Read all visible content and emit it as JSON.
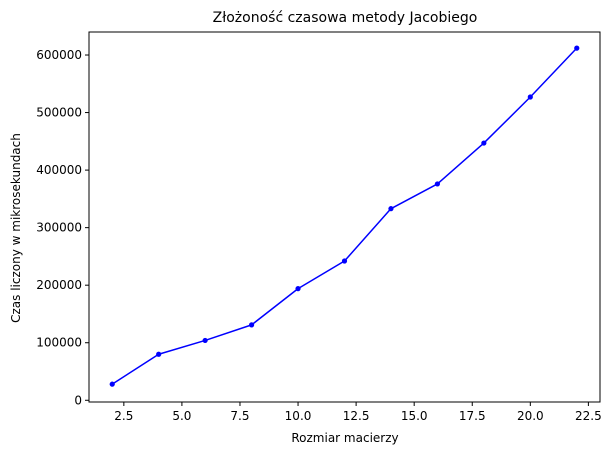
{
  "chart_data": {
    "type": "line",
    "title": "Złożoność czasowa metody Jacobiego",
    "xlabel": "Rozmiar macierzy",
    "ylabel": "Czas liczony w mikrosekundach",
    "xlim": [
      1.0,
      23.0
    ],
    "ylim": [
      -3000,
      640000
    ],
    "xticks": [
      2.5,
      5.0,
      7.5,
      10.0,
      12.5,
      15.0,
      17.5,
      20.0,
      22.5
    ],
    "xtick_labels": [
      "2.5",
      "5.0",
      "7.5",
      "10.0",
      "12.5",
      "15.0",
      "17.5",
      "20.0",
      "22.5"
    ],
    "yticks": [
      0,
      100000,
      200000,
      300000,
      400000,
      500000,
      600000
    ],
    "ytick_labels": [
      "0",
      "100000",
      "200000",
      "300000",
      "400000",
      "500000",
      "600000"
    ],
    "grid": false,
    "series": [
      {
        "color": "#0000ff",
        "marker": "circle",
        "x": [
          2,
          4,
          6,
          8,
          10,
          12,
          14,
          16,
          18,
          20,
          22
        ],
        "y": [
          28000,
          80000,
          104000,
          131000,
          194000,
          242000,
          333000,
          376000,
          447000,
          527000,
          612000
        ]
      }
    ]
  }
}
